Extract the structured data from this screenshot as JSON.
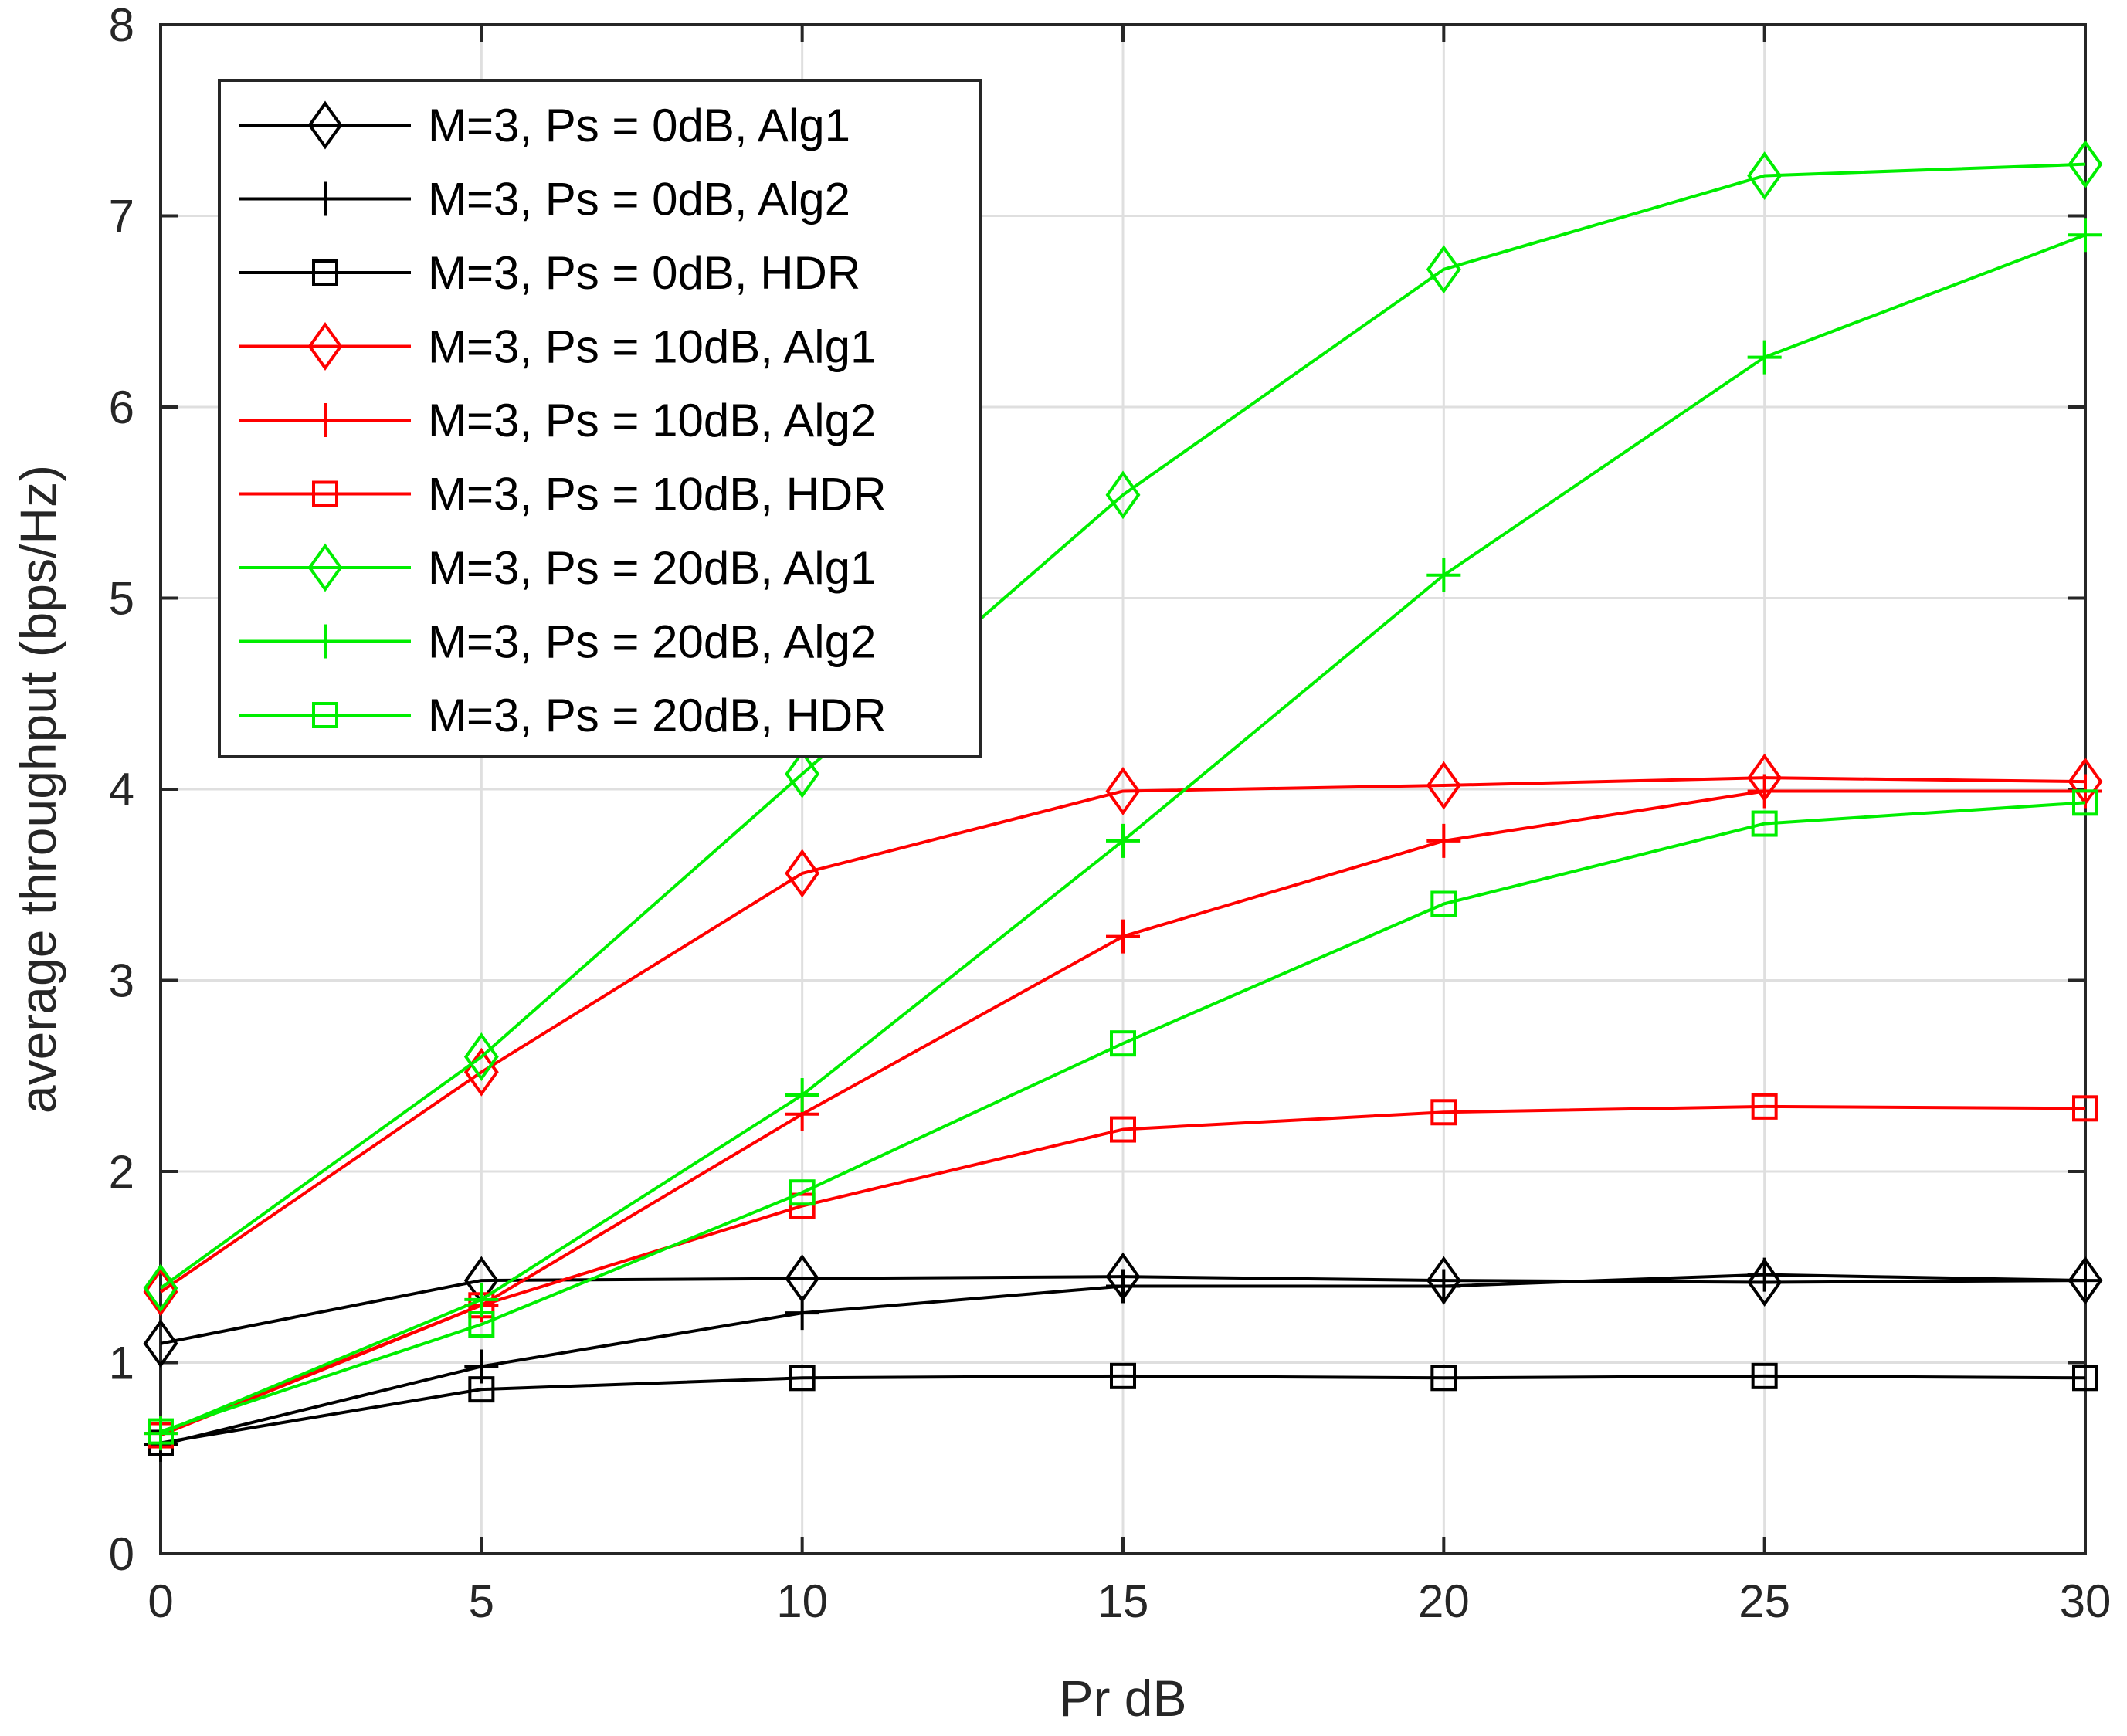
{
  "chart_data": {
    "type": "line",
    "title": "",
    "xlabel": "Pr dB",
    "ylabel": "average throughput (bps/Hz)",
    "xlim": [
      0,
      30
    ],
    "ylim": [
      0,
      8
    ],
    "x": [
      0,
      5,
      10,
      15,
      20,
      25,
      30
    ],
    "xticks": [
      "0",
      "5",
      "10",
      "15",
      "20",
      "25",
      "30"
    ],
    "yticks": [
      "0",
      "1",
      "2",
      "3",
      "4",
      "5",
      "6",
      "7",
      "8"
    ],
    "grid": true,
    "legend_position": "top-left",
    "series": [
      {
        "name": "M=3, Ps = 0dB, Alg1",
        "color": "#000000",
        "marker": "diamond",
        "values": [
          1.1,
          1.43,
          1.44,
          1.45,
          1.43,
          1.42,
          1.43
        ]
      },
      {
        "name": "M=3, Ps = 0dB, Alg2",
        "color": "#000000",
        "marker": "plus",
        "values": [
          0.57,
          0.98,
          1.26,
          1.4,
          1.4,
          1.46,
          1.43
        ]
      },
      {
        "name": "M=3, Ps = 0dB, HDR",
        "color": "#000000",
        "marker": "square",
        "values": [
          0.58,
          0.86,
          0.92,
          0.93,
          0.92,
          0.93,
          0.92
        ]
      },
      {
        "name": "M=3, Ps = 10dB, Alg1",
        "color": "#ff0000",
        "marker": "diamond",
        "values": [
          1.37,
          2.52,
          3.56,
          3.99,
          4.02,
          4.06,
          4.04
        ]
      },
      {
        "name": "M=3, Ps = 10dB, Alg2",
        "color": "#ff0000",
        "marker": "plus",
        "values": [
          0.63,
          1.3,
          2.3,
          3.23,
          3.73,
          3.99,
          3.99
        ]
      },
      {
        "name": "M=3, Ps = 10dB, HDR",
        "color": "#ff0000",
        "marker": "square",
        "values": [
          0.62,
          1.3,
          1.82,
          2.22,
          2.31,
          2.34,
          2.33
        ]
      },
      {
        "name": "M=3, Ps = 20dB, Alg1",
        "color": "#00ee00",
        "marker": "diamond",
        "values": [
          1.39,
          2.6,
          4.08,
          5.54,
          6.72,
          7.21,
          7.27
        ]
      },
      {
        "name": "M=3, Ps = 20dB, Alg2",
        "color": "#00ee00",
        "marker": "plus",
        "values": [
          0.63,
          1.33,
          2.4,
          3.73,
          5.12,
          6.26,
          6.9
        ]
      },
      {
        "name": "M=3, Ps = 20dB, HDR",
        "color": "#00ee00",
        "marker": "square",
        "values": [
          0.64,
          1.2,
          1.89,
          2.67,
          3.4,
          3.82,
          3.93
        ]
      }
    ]
  }
}
